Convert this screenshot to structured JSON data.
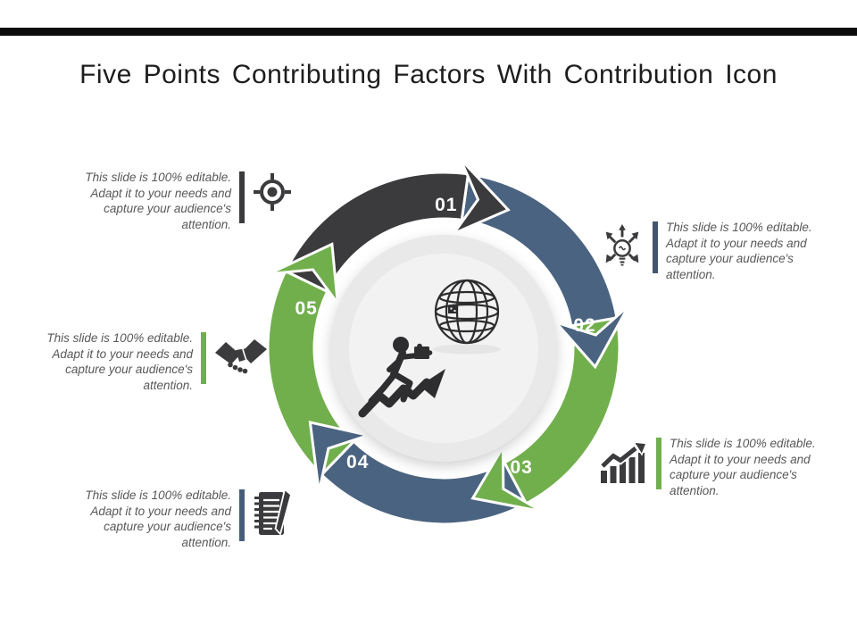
{
  "slide": {
    "title": "Five Points Contributing Factors With Contribution Icon"
  },
  "colors": {
    "charcoal": "#3b3b3d",
    "blue": "#4a6380",
    "green": "#71af4d",
    "top_bar": "#0b0b0b",
    "body_text": "#58585a",
    "center_circle_outer": "#e9e9e9",
    "center_circle_inner": "#f2f2f2"
  },
  "diagram": {
    "type": "five-step-cycle-arrows",
    "segments": [
      {
        "label": "01",
        "color": "#3b3b3d"
      },
      {
        "label": "02",
        "color": "#4a6380"
      },
      {
        "label": "03",
        "color": "#71af4d"
      },
      {
        "label": "04",
        "color": "#4a6380"
      },
      {
        "label": "05",
        "color": "#71af4d"
      }
    ],
    "center_icons": [
      "globe-icon",
      "runner-with-puzzle-growth-arrow-icon"
    ]
  },
  "callouts": [
    {
      "name": "target",
      "icon": "target-icon",
      "bar_color": "#3b3b3d",
      "lines": [
        "This slide is 100% editable.",
        "Adapt it to your needs and",
        "capture your audience's",
        "attention."
      ]
    },
    {
      "name": "idea",
      "icon": "idea-bulb-arrows-icon",
      "bar_color": "#44546a",
      "lines": [
        "This slide is 100% editable.",
        "Adapt it to your needs and",
        "capture your audience's",
        "attention."
      ]
    },
    {
      "name": "handshake",
      "icon": "handshake-icon",
      "bar_color": "#71af4d",
      "lines": [
        "This slide is 100% editable.",
        "Adapt it to your needs and",
        "capture your audience's",
        "attention."
      ]
    },
    {
      "name": "notes",
      "icon": "notepad-pen-icon",
      "bar_color": "#465e7b",
      "lines": [
        "This slide is 100% editable.",
        "Adapt it to your needs and",
        "capture your audience's",
        "attention."
      ]
    },
    {
      "name": "growth",
      "icon": "growth-chart-icon",
      "bar_color": "#71af4d",
      "lines": [
        "This slide is 100% editable.",
        "Adapt it to your needs and",
        "capture your audience's",
        "attention."
      ]
    }
  ]
}
